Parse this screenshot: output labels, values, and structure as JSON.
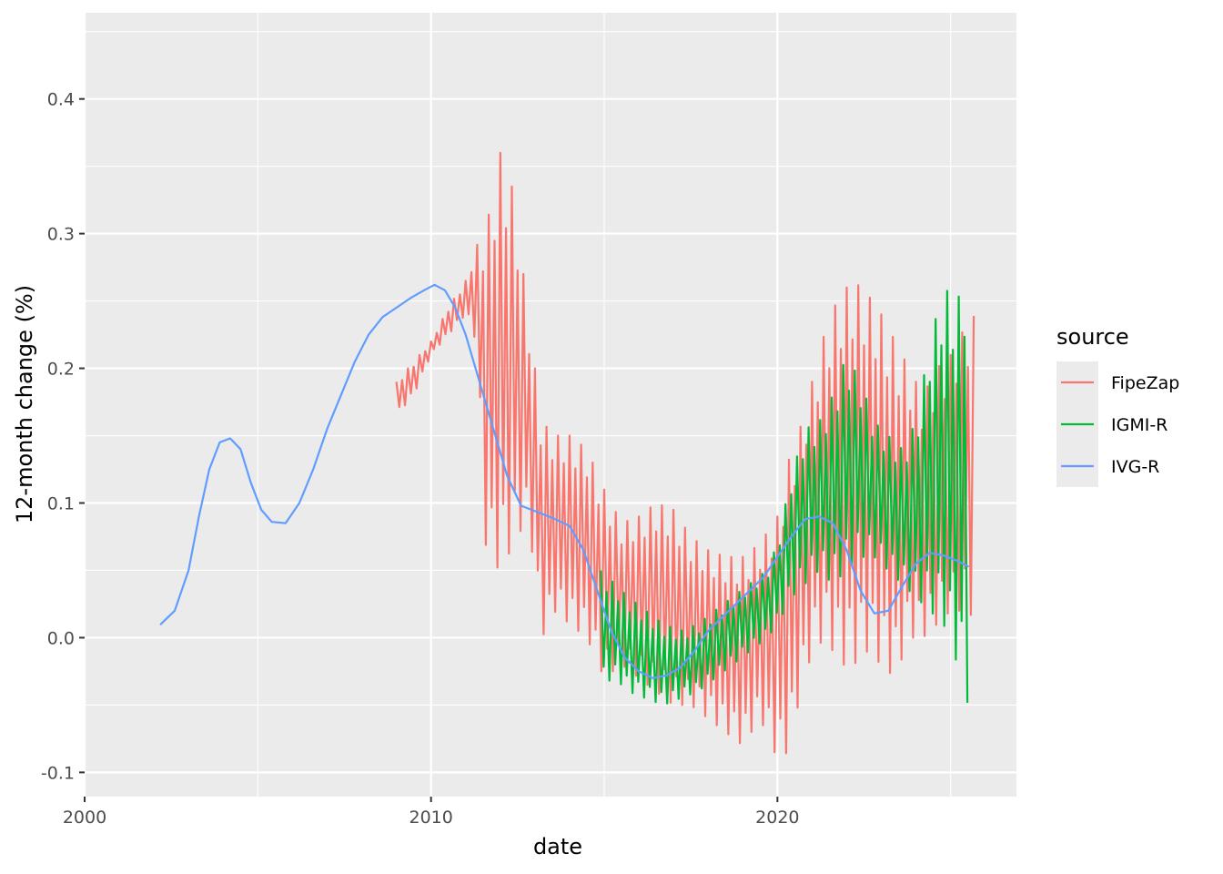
{
  "chart_data": {
    "type": "line",
    "xlabel": "date",
    "ylabel": "12-month change (%)",
    "xlim": [
      2000,
      2026.9
    ],
    "ylim": [
      -0.118,
      0.464
    ],
    "x_ticks": [
      2000,
      2010,
      2020
    ],
    "x_tick_labels": [
      "2000",
      "2010",
      "2020"
    ],
    "y_ticks": [
      -0.1,
      0.0,
      0.1,
      0.2,
      0.3,
      0.4
    ],
    "y_tick_labels": [
      "-0.1",
      "0.0",
      "0.1",
      "0.2",
      "0.3",
      "0.4"
    ],
    "grid": true,
    "panel_background": "#ebebeb",
    "legend": {
      "title": "source",
      "position": "right",
      "entries": [
        "FipeZap",
        "IGMI-R",
        "IVG-R"
      ]
    },
    "series": [
      {
        "name": "FipeZap",
        "color": "#f8766d",
        "style": "monthly-oscillating",
        "envelope": {
          "x": [
            2009.0,
            2009.5,
            2010.0,
            2010.5,
            2011.0,
            2011.3,
            2011.6,
            2012.0,
            2012.4,
            2012.8,
            2013.2,
            2013.6,
            2014.0,
            2014.5,
            2015.0,
            2015.5,
            2016.0,
            2016.5,
            2017.0,
            2017.5,
            2018.0,
            2018.5,
            2019.0,
            2019.5,
            2020.0,
            2020.3,
            2020.6,
            2021.0,
            2021.4,
            2021.8,
            2022.2,
            2022.6,
            2023.0,
            2023.4,
            2023.8,
            2024.2,
            2024.6,
            2025.0,
            2025.4,
            2025.7
          ],
          "high": [
            0.19,
            0.205,
            0.22,
            0.245,
            0.265,
            0.29,
            0.305,
            0.36,
            0.33,
            0.24,
            0.16,
            0.15,
            0.15,
            0.14,
            0.11,
            0.085,
            0.09,
            0.1,
            0.095,
            0.075,
            0.065,
            0.06,
            0.06,
            0.07,
            0.09,
            0.13,
            0.15,
            0.19,
            0.23,
            0.255,
            0.265,
            0.255,
            0.24,
            0.22,
            0.2,
            0.18,
            0.2,
            0.21,
            0.23,
            0.24
          ],
          "low": [
            0.165,
            0.18,
            0.21,
            0.225,
            0.24,
            0.22,
            0.06,
            0.05,
            0.07,
            0.09,
            0.0,
            0.02,
            0.01,
            0.0,
            -0.03,
            -0.02,
            -0.03,
            -0.04,
            -0.05,
            -0.05,
            -0.06,
            -0.07,
            -0.08,
            -0.06,
            -0.09,
            -0.085,
            -0.05,
            -0.01,
            0.0,
            -0.02,
            -0.02,
            -0.01,
            -0.02,
            -0.03,
            0.0,
            0.0,
            0.01,
            0.02,
            0.02,
            0.015
          ]
        }
      },
      {
        "name": "IGMI-R",
        "color": "#00ba38",
        "style": "monthly-oscillating",
        "envelope": {
          "x": [
            2014.9,
            2015.3,
            2015.7,
            2016.2,
            2016.7,
            2017.2,
            2017.7,
            2018.2,
            2018.7,
            2019.2,
            2019.7,
            2020.0,
            2020.4,
            2020.8,
            2021.2,
            2021.6,
            2022.0,
            2022.4,
            2022.8,
            2023.2,
            2023.6,
            2024.0,
            2024.4,
            2024.8,
            2025.2,
            2025.5
          ],
          "high": [
            0.05,
            0.04,
            0.03,
            0.02,
            0.01,
            0.005,
            0.01,
            0.02,
            0.03,
            0.04,
            0.05,
            0.07,
            0.12,
            0.155,
            0.16,
            0.18,
            0.21,
            0.19,
            0.16,
            0.15,
            0.14,
            0.16,
            0.22,
            0.26,
            0.25,
            0.28
          ],
          "low": [
            -0.035,
            -0.03,
            -0.04,
            -0.045,
            -0.05,
            -0.045,
            -0.04,
            -0.03,
            -0.02,
            -0.01,
            0.0,
            0.01,
            0.03,
            0.04,
            0.05,
            0.04,
            0.05,
            0.06,
            0.06,
            0.05,
            0.04,
            0.03,
            0.02,
            0.01,
            -0.02,
            -0.05
          ]
        }
      },
      {
        "name": "IVG-R",
        "color": "#619cff",
        "style": "smooth",
        "x": [
          2002.2,
          2002.6,
          2003.0,
          2003.3,
          2003.6,
          2003.9,
          2004.2,
          2004.5,
          2004.8,
          2005.1,
          2005.4,
          2005.8,
          2006.2,
          2006.6,
          2007.0,
          2007.4,
          2007.8,
          2008.2,
          2008.6,
          2009.0,
          2009.4,
          2009.8,
          2010.1,
          2010.4,
          2010.7,
          2011.0,
          2011.4,
          2011.8,
          2012.2,
          2012.6,
          2013.0,
          2013.5,
          2014.0,
          2014.4,
          2014.8,
          2015.2,
          2015.6,
          2016.0,
          2016.4,
          2016.8,
          2017.2,
          2017.6,
          2018.0,
          2018.4,
          2018.8,
          2019.2,
          2019.6,
          2020.0,
          2020.4,
          2020.8,
          2021.2,
          2021.6,
          2022.0,
          2022.4,
          2022.8,
          2023.2,
          2023.6,
          2024.0,
          2024.4,
          2024.8,
          2025.2,
          2025.5
        ],
        "y": [
          0.01,
          0.02,
          0.05,
          0.09,
          0.125,
          0.145,
          0.148,
          0.14,
          0.115,
          0.095,
          0.086,
          0.085,
          0.1,
          0.125,
          0.155,
          0.18,
          0.205,
          0.225,
          0.238,
          0.245,
          0.252,
          0.258,
          0.262,
          0.258,
          0.245,
          0.225,
          0.19,
          0.155,
          0.12,
          0.098,
          0.094,
          0.089,
          0.083,
          0.065,
          0.035,
          0.005,
          -0.015,
          -0.025,
          -0.03,
          -0.028,
          -0.022,
          -0.01,
          0.005,
          0.015,
          0.025,
          0.035,
          0.045,
          0.06,
          0.075,
          0.088,
          0.09,
          0.085,
          0.065,
          0.035,
          0.018,
          0.02,
          0.038,
          0.055,
          0.063,
          0.061,
          0.057,
          0.053
        ]
      }
    ]
  }
}
